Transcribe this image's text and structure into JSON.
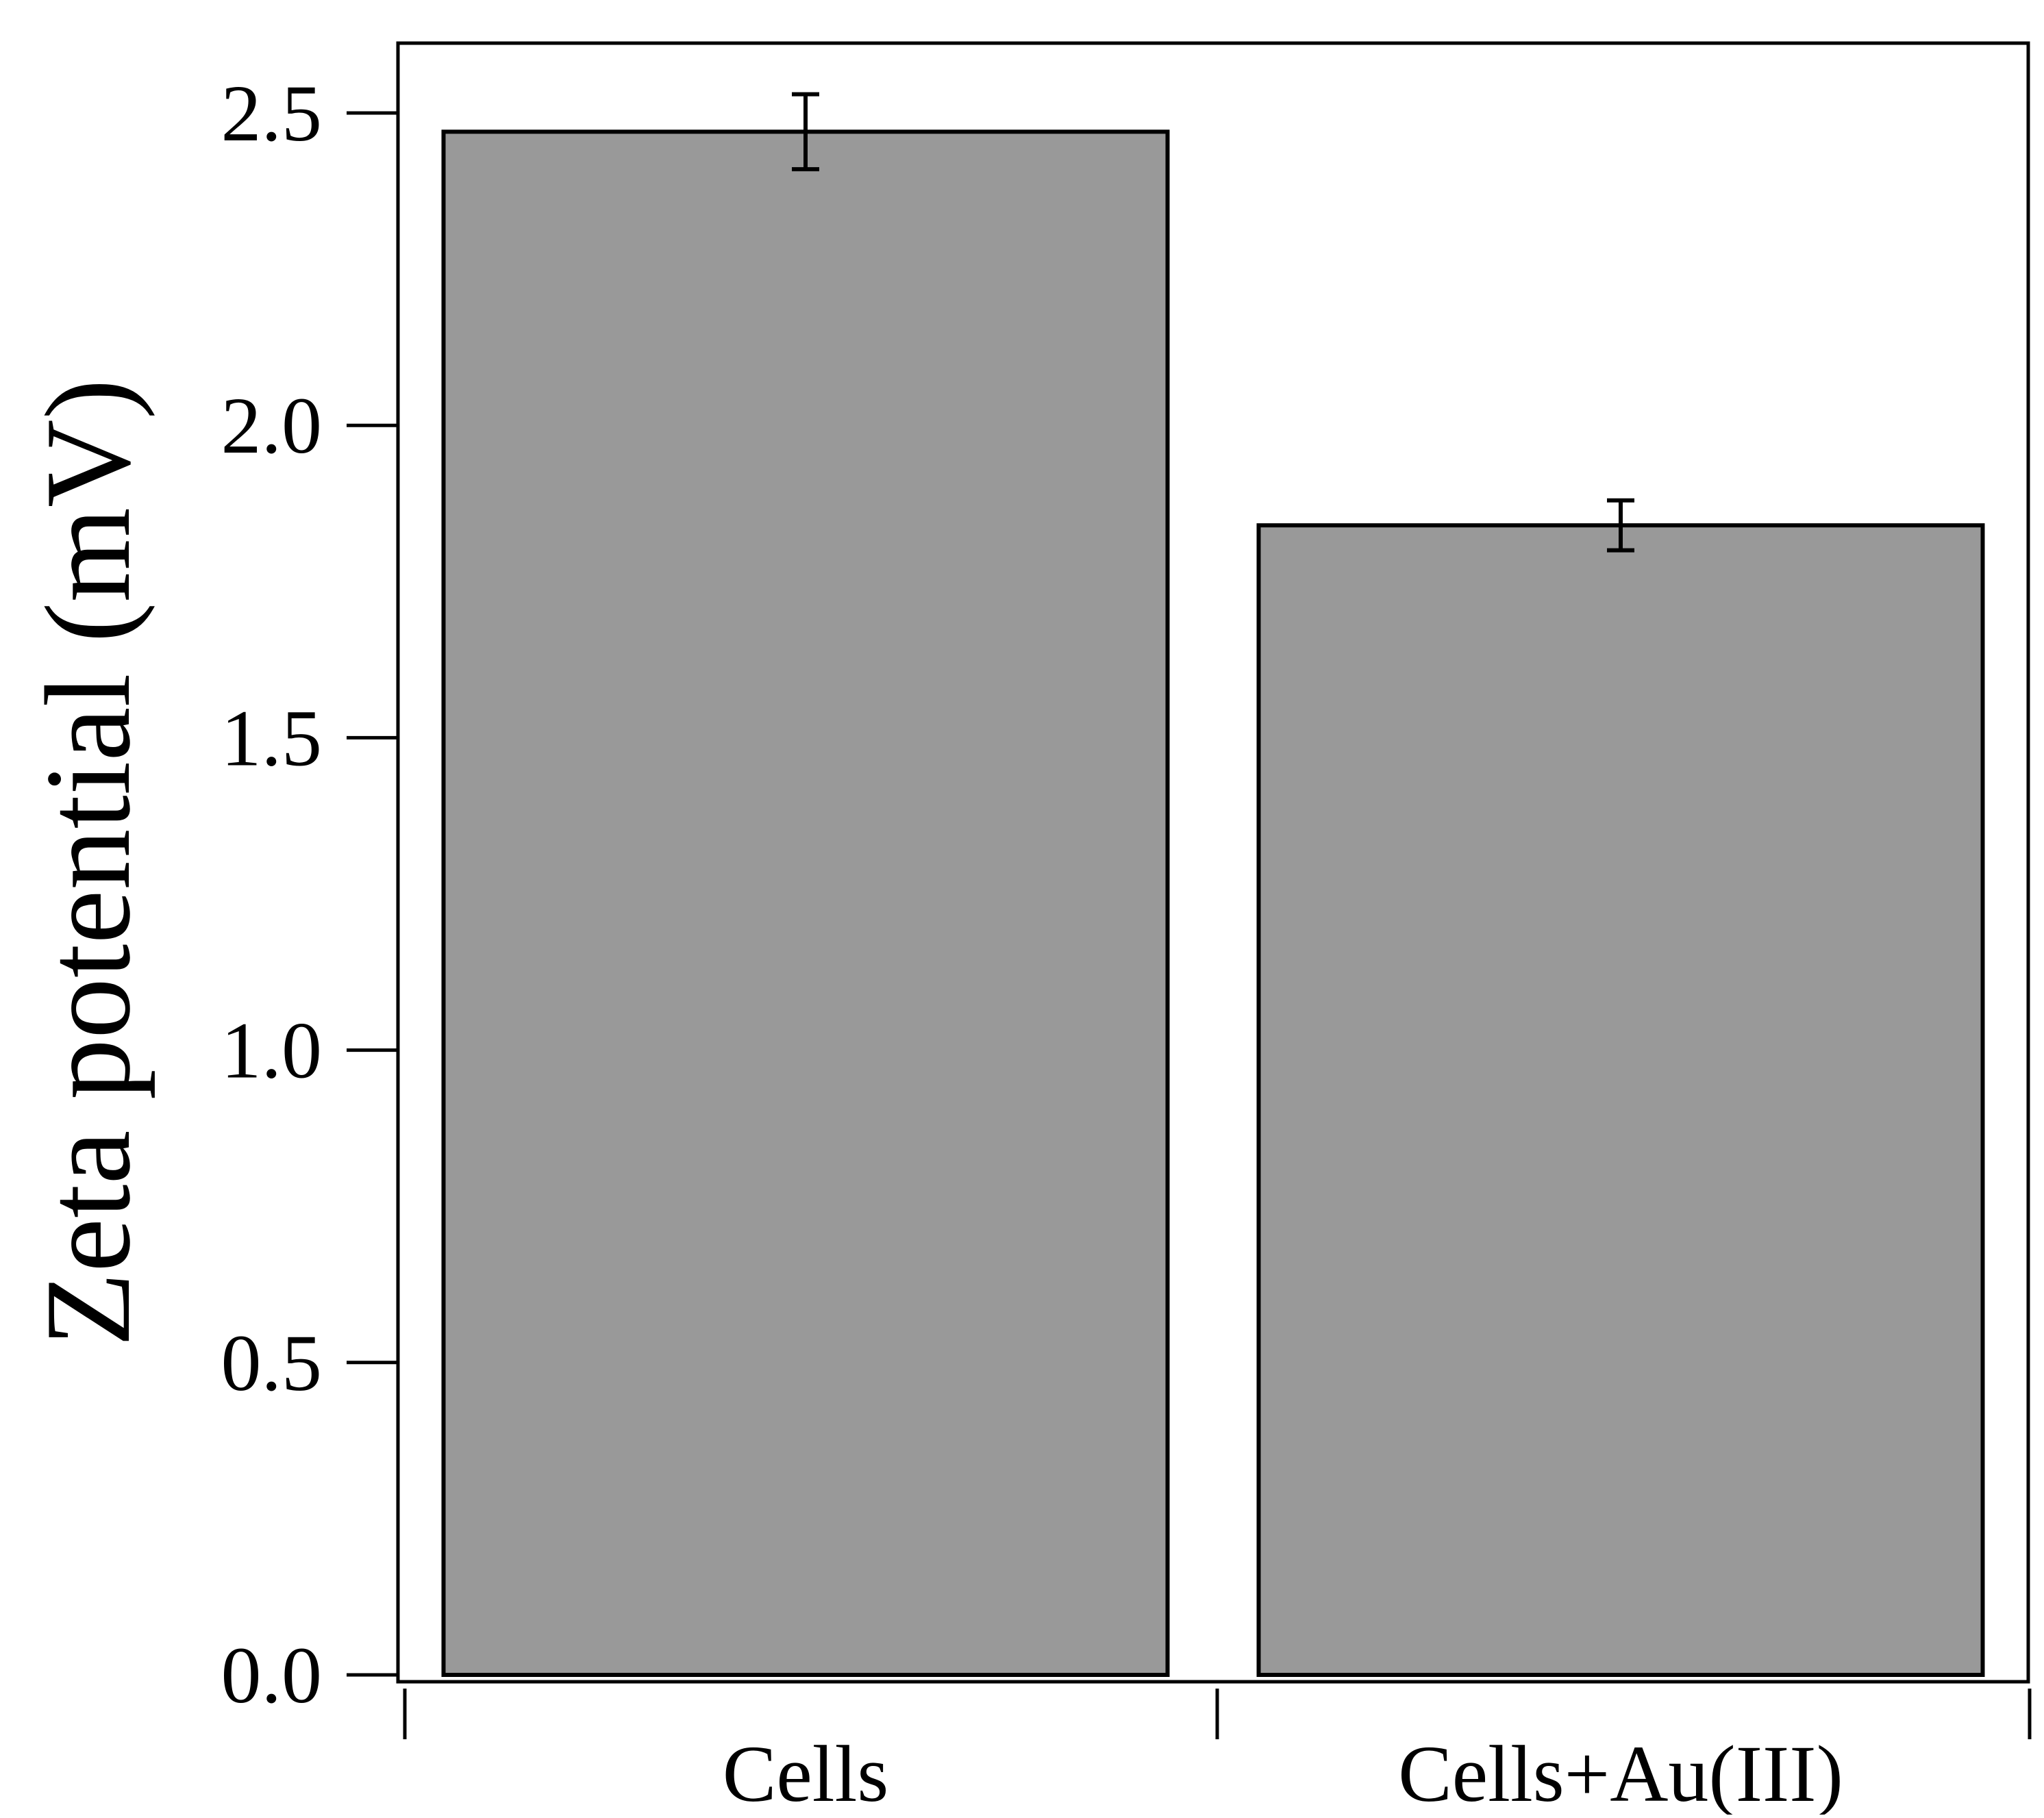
{
  "chart_data": {
    "type": "bar",
    "title": "",
    "xlabel": "",
    "ylabel": "Zeta potential (mV)",
    "categories": [
      "Cells",
      "Cells+Au(III)"
    ],
    "values": [
      2.47,
      1.84
    ],
    "error": [
      0.06,
      0.04
    ],
    "ylim": [
      0,
      2.6
    ],
    "yticks": [
      "0.0",
      "0.5",
      "1.0",
      "1.5",
      "2.0",
      "2.5"
    ],
    "grid": false,
    "legend": "none",
    "colors": {
      "bar_fill": "#999999",
      "bar_stroke": "#000000",
      "axis": "#000000"
    }
  }
}
